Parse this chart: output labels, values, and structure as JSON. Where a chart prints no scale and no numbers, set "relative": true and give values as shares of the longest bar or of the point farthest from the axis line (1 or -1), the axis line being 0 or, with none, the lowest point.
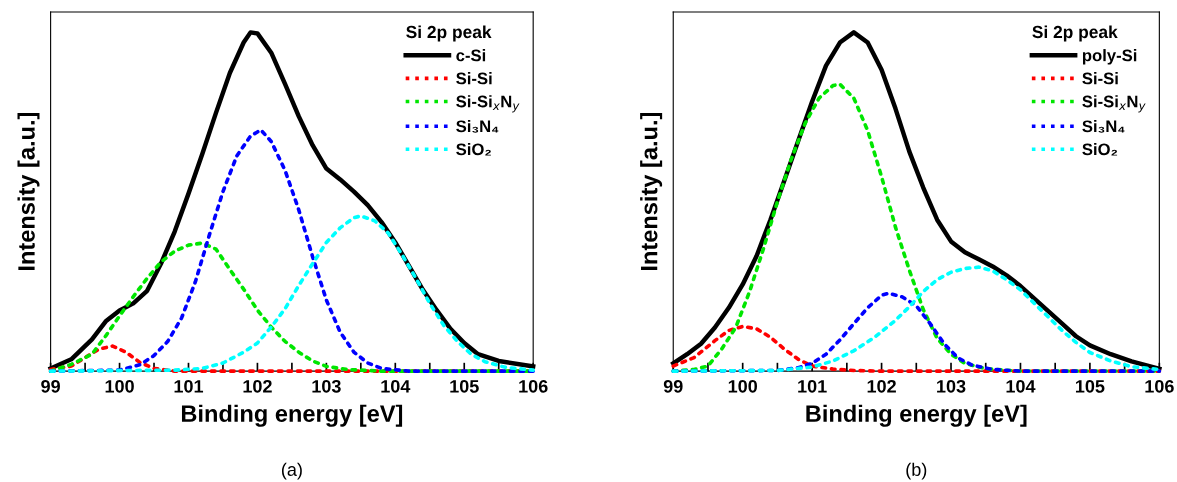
{
  "chart_data": [
    {
      "type": "line",
      "relative": true,
      "xlabel": "Binding energy [eV]",
      "ylabel": "Intensity [a.u.]",
      "xlim": [
        99,
        106
      ],
      "xticks": [
        99,
        {
          "value": 99.5,
          "label": null
        },
        100,
        {
          "value": 100.5,
          "label": null
        },
        101,
        {
          "value": 101.5,
          "label": null
        },
        102,
        {
          "value": 102.5,
          "label": null
        },
        103,
        {
          "value": 103.5,
          "label": null
        },
        104,
        {
          "value": 104.5,
          "label": null
        },
        105,
        {
          "value": 105.5,
          "label": null
        },
        106
      ],
      "tick_labels": "x",
      "grid": false,
      "legend": "top right",
      "legend_title": "Si 2p peak",
      "marker": "none",
      "annotations": [
        "(a)"
      ],
      "series": [
        {
          "name": "c-Si",
          "color": "#000000",
          "line_style": "solid",
          "x": [
            99.0,
            99.3,
            99.6,
            99.8,
            100.0,
            100.2,
            100.4,
            100.6,
            100.8,
            101.0,
            101.2,
            101.4,
            101.6,
            101.8,
            101.9,
            102.0,
            102.2,
            102.4,
            102.6,
            102.8,
            103.0,
            103.2,
            103.4,
            103.6,
            103.8,
            104.0,
            104.2,
            104.4,
            104.6,
            104.8,
            105.0,
            105.2,
            105.5,
            106.0
          ],
          "values": [
            0.008,
            0.035,
            0.094,
            0.147,
            0.179,
            0.2,
            0.237,
            0.317,
            0.412,
            0.524,
            0.641,
            0.763,
            0.88,
            0.97,
            1.0,
            0.997,
            0.94,
            0.848,
            0.752,
            0.667,
            0.598,
            0.566,
            0.53,
            0.49,
            0.44,
            0.38,
            0.31,
            0.24,
            0.18,
            0.125,
            0.083,
            0.05,
            0.03,
            0.014
          ]
        },
        {
          "name": "Si-Si",
          "color": "#ff0000",
          "line_style": "dotted",
          "x": [
            99.0,
            99.3,
            99.5,
            99.7,
            99.9,
            100.1,
            100.3,
            100.5,
            100.8,
            106.0
          ],
          "values": [
            0.005,
            0.015,
            0.04,
            0.065,
            0.074,
            0.055,
            0.025,
            0.008,
            0.0,
            0.0
          ]
        },
        {
          "name": "Si-Si$_{x}$N$_{y}$",
          "color": "#00e600",
          "line_style": "dotted",
          "x": [
            99.0,
            99.3,
            99.6,
            99.8,
            100.0,
            100.2,
            100.4,
            100.6,
            100.8,
            101.0,
            101.2,
            101.4,
            101.6,
            101.8,
            102.0,
            102.2,
            102.4,
            102.6,
            102.8,
            103.0,
            103.3,
            103.8,
            106.0
          ],
          "values": [
            0.0,
            0.02,
            0.05,
            0.104,
            0.163,
            0.22,
            0.274,
            0.322,
            0.354,
            0.372,
            0.378,
            0.36,
            0.3,
            0.242,
            0.18,
            0.13,
            0.088,
            0.056,
            0.03,
            0.014,
            0.005,
            0.0,
            0.0
          ]
        },
        {
          "name": "Si₃N₄",
          "color": "#0000ff",
          "line_style": "dotted",
          "x": [
            99.0,
            100.0,
            100.3,
            100.5,
            100.7,
            100.9,
            101.1,
            101.3,
            101.5,
            101.7,
            101.9,
            102.05,
            102.2,
            102.4,
            102.6,
            102.8,
            103.0,
            103.2,
            103.4,
            103.6,
            103.8,
            104.2,
            106.0
          ],
          "values": [
            0.0,
            0.003,
            0.019,
            0.046,
            0.088,
            0.157,
            0.264,
            0.4,
            0.53,
            0.635,
            0.694,
            0.712,
            0.678,
            0.593,
            0.476,
            0.338,
            0.21,
            0.115,
            0.056,
            0.024,
            0.008,
            0.0,
            0.0
          ]
        },
        {
          "name": "SiO₂",
          "color": "#00ffff",
          "line_style": "dotted",
          "x": [
            99.0,
            100.8,
            101.2,
            101.5,
            101.8,
            102.0,
            102.2,
            102.4,
            102.6,
            102.8,
            103.0,
            103.2,
            103.4,
            103.5,
            103.7,
            103.9,
            104.1,
            104.3,
            104.5,
            104.7,
            104.9,
            105.1,
            105.3,
            105.6,
            106.0
          ],
          "values": [
            0.0,
            0.003,
            0.008,
            0.024,
            0.056,
            0.083,
            0.13,
            0.184,
            0.253,
            0.317,
            0.38,
            0.423,
            0.453,
            0.458,
            0.444,
            0.407,
            0.343,
            0.274,
            0.2,
            0.136,
            0.088,
            0.05,
            0.028,
            0.011,
            0.003
          ]
        }
      ]
    },
    {
      "type": "line",
      "relative": true,
      "xlabel": "Binding energy [eV]",
      "ylabel": "Intensity [a.u.]",
      "xlim": [
        99,
        106
      ],
      "xticks": [
        99,
        {
          "value": 99.5,
          "label": null
        },
        100,
        {
          "value": 100.5,
          "label": null
        },
        101,
        {
          "value": 101.5,
          "label": null
        },
        102,
        {
          "value": 102.5,
          "label": null
        },
        103,
        {
          "value": 103.5,
          "label": null
        },
        104,
        {
          "value": 104.5,
          "label": null
        },
        105,
        {
          "value": 105.5,
          "label": null
        },
        106
      ],
      "tick_labels": "x",
      "grid": false,
      "legend": "top right",
      "legend_title": "Si 2p peak",
      "marker": "none",
      "annotations": [
        "(b)"
      ],
      "series": [
        {
          "name": "poly-Si",
          "color": "#000000",
          "line_style": "solid",
          "x": [
            99.0,
            99.2,
            99.4,
            99.6,
            99.8,
            100.0,
            100.2,
            100.4,
            100.6,
            100.8,
            101.0,
            101.2,
            101.4,
            101.6,
            101.8,
            102.0,
            102.2,
            102.4,
            102.6,
            102.8,
            103.0,
            103.2,
            103.4,
            103.6,
            103.8,
            104.0,
            104.2,
            104.4,
            104.6,
            104.8,
            105.0,
            105.3,
            105.6,
            106.0
          ],
          "values": [
            0.023,
            0.05,
            0.081,
            0.129,
            0.187,
            0.256,
            0.34,
            0.447,
            0.563,
            0.68,
            0.796,
            0.902,
            0.97,
            1.0,
            0.97,
            0.89,
            0.775,
            0.648,
            0.542,
            0.447,
            0.383,
            0.351,
            0.33,
            0.309,
            0.283,
            0.251,
            0.214,
            0.177,
            0.14,
            0.103,
            0.076,
            0.05,
            0.029,
            0.007
          ]
        },
        {
          "name": "Si-Si",
          "color": "#ff0000",
          "line_style": "dotted",
          "x": [
            99.0,
            99.3,
            99.6,
            99.8,
            100.0,
            100.2,
            100.4,
            100.6,
            100.8,
            101.0,
            101.3,
            101.6,
            102.0,
            106.0
          ],
          "values": [
            0.015,
            0.04,
            0.09,
            0.12,
            0.132,
            0.125,
            0.1,
            0.065,
            0.035,
            0.015,
            0.006,
            0.002,
            0.0,
            0.0
          ]
        },
        {
          "name": "Si-Si$_{x}$N$_{y}$",
          "color": "#00e600",
          "line_style": "dotted",
          "x": [
            99.0,
            99.3,
            99.5,
            99.7,
            99.9,
            100.1,
            100.3,
            100.5,
            100.7,
            100.9,
            101.1,
            101.3,
            101.4,
            101.6,
            101.8,
            102.0,
            102.2,
            102.4,
            102.6,
            102.8,
            103.0,
            103.2,
            103.5,
            104.0,
            106.0
          ],
          "values": [
            0.0,
            0.005,
            0.015,
            0.066,
            0.129,
            0.235,
            0.362,
            0.5,
            0.626,
            0.732,
            0.806,
            0.843,
            0.847,
            0.806,
            0.71,
            0.574,
            0.425,
            0.298,
            0.182,
            0.097,
            0.05,
            0.023,
            0.007,
            0.0,
            0.0
          ]
        },
        {
          "name": "Si₃N₄",
          "color": "#0000ff",
          "line_style": "dotted",
          "x": [
            99.0,
            100.5,
            100.8,
            101.0,
            101.2,
            101.4,
            101.6,
            101.8,
            102.0,
            102.1,
            102.3,
            102.5,
            102.7,
            102.9,
            103.1,
            103.3,
            103.6,
            104.0,
            106.0
          ],
          "values": [
            0.0,
            0.002,
            0.01,
            0.023,
            0.05,
            0.092,
            0.14,
            0.187,
            0.224,
            0.23,
            0.219,
            0.193,
            0.14,
            0.081,
            0.039,
            0.018,
            0.005,
            0.0,
            0.0
          ]
        },
        {
          "name": "SiO₂",
          "color": "#00ffff",
          "line_style": "dotted",
          "x": [
            99.0,
            100.5,
            101.0,
            101.3,
            101.6,
            101.9,
            102.2,
            102.4,
            102.6,
            102.8,
            103.0,
            103.2,
            103.4,
            103.6,
            103.8,
            104.0,
            104.2,
            104.4,
            104.6,
            104.8,
            105.0,
            105.3,
            105.6,
            106.0
          ],
          "values": [
            0.0,
            0.002,
            0.012,
            0.03,
            0.06,
            0.1,
            0.15,
            0.19,
            0.235,
            0.27,
            0.292,
            0.303,
            0.307,
            0.296,
            0.27,
            0.24,
            0.2,
            0.16,
            0.12,
            0.085,
            0.055,
            0.03,
            0.013,
            0.005
          ]
        }
      ]
    }
  ]
}
